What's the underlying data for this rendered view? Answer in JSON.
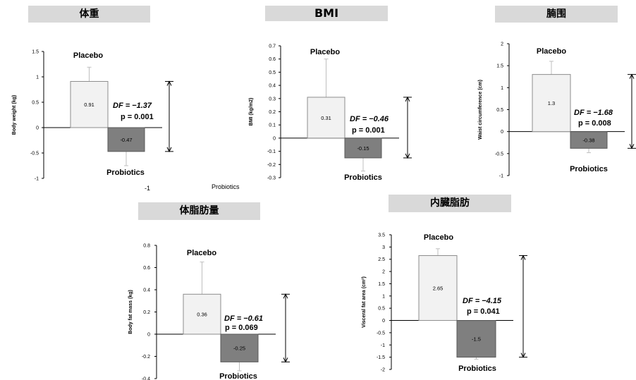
{
  "chart_data": [
    {
      "type": "bar",
      "title": "体重",
      "ylabel": "Body weight (kg)",
      "ylim": [
        -1,
        1.5
      ],
      "yticks": [
        "1.5",
        "1",
        "0.5",
        "0",
        "-0.5",
        "-1"
      ],
      "yticks_values": [
        1.5,
        1,
        0.5,
        0,
        -0.5,
        -1
      ],
      "categories": [
        "Placebo",
        "Probiotics"
      ],
      "values": [
        0.91,
        -0.47
      ],
      "value_labels": [
        "0.91",
        "-0.47"
      ],
      "error_bars": [
        0.28,
        0.28
      ],
      "df_label": "DF = −1.37",
      "p_label": "p = 0.001",
      "extra_texts": [
        "-1",
        "Probiotics"
      ]
    },
    {
      "type": "bar",
      "title": "BMI",
      "ylabel": "BMI (kg/m2)",
      "ylim": [
        -0.3,
        0.7
      ],
      "yticks": [
        "0.7",
        "0.6",
        "0.5",
        "0.4",
        "0.3",
        "0.2",
        "0.1",
        "0",
        "-0.1",
        "-0.2",
        "-0.3"
      ],
      "yticks_values": [
        0.7,
        0.6,
        0.5,
        0.4,
        0.3,
        0.2,
        0.1,
        0,
        -0.1,
        -0.2,
        -0.3
      ],
      "categories": [
        "Placebo",
        "Probiotics"
      ],
      "values": [
        0.31,
        -0.15
      ],
      "value_labels": [
        "0.31",
        "-0.15"
      ],
      "error_bars": [
        0.29,
        0.1
      ],
      "df_label": "DF = −0.46",
      "p_label": "p = 0.001"
    },
    {
      "type": "bar",
      "title": "腩围",
      "ylabel": "Waist circumference (cm)",
      "ylim": [
        -1,
        2
      ],
      "yticks": [
        "2",
        "1.5",
        "1",
        "0.5",
        "0",
        "-0.5",
        "-1"
      ],
      "yticks_values": [
        2,
        1.5,
        1,
        0.5,
        0,
        -0.5,
        -1
      ],
      "categories": [
        "Placebo",
        "Probiotics"
      ],
      "values": [
        1.3,
        -0.38
      ],
      "value_labels": [
        "1.3",
        "-0.38"
      ],
      "error_bars": [
        0.3,
        0.1
      ],
      "df_label": "DF = −1.68",
      "p_label": "p = 0.008"
    },
    {
      "type": "bar",
      "title": "体脂肪量",
      "ylabel": "Body fat mass (kg)",
      "ylim": [
        -0.4,
        0.8
      ],
      "yticks": [
        "0.8",
        "0.6",
        "0.4",
        "0.2",
        "0",
        "-0.2",
        "-0.4"
      ],
      "yticks_values": [
        0.8,
        0.6,
        0.4,
        0.2,
        0,
        -0.2,
        -0.4
      ],
      "categories": [
        "Placebo",
        "Probiotics"
      ],
      "values": [
        0.36,
        -0.25
      ],
      "value_labels": [
        "0.36",
        "-0.25"
      ],
      "error_bars": [
        0.29,
        0.08
      ],
      "df_label": "DF = −0.61",
      "p_label": "p = 0.069"
    },
    {
      "type": "bar",
      "title": "内臓脂肪",
      "ylabel": "Visceral fat area (cm²)",
      "ylim": [
        -2,
        3.5
      ],
      "yticks": [
        "3.5",
        "3",
        "2.5",
        "2",
        "1.5",
        "1",
        "0.5",
        "0",
        "-0.5",
        "-1",
        "-1.5",
        "-2"
      ],
      "yticks_values": [
        3.5,
        3,
        2.5,
        2,
        1.5,
        1,
        0.5,
        0,
        -0.5,
        -1,
        -1.5,
        -2
      ],
      "categories": [
        "Placebo",
        "Probiotics"
      ],
      "values": [
        2.65,
        -1.5
      ],
      "value_labels": [
        "2.65",
        "-1.5"
      ],
      "error_bars": [
        0.28,
        0.08
      ],
      "df_label": "DF = −4.15",
      "p_label": "p = 0.041"
    }
  ],
  "colors": {
    "placebo_fill": "#f2f2f2",
    "probiotics_fill": "#7f7f7f",
    "title_bg": "#d9d9d9",
    "stroke": "#000000",
    "errorbar": "#bfbfbf"
  }
}
